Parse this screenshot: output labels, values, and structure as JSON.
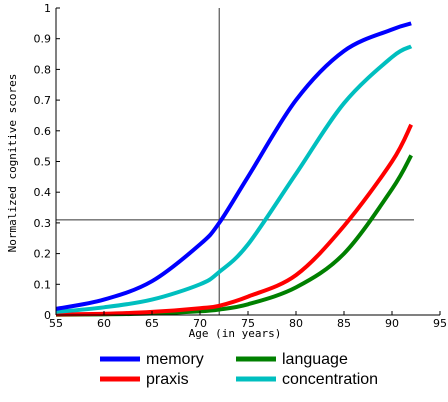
{
  "chart_data": {
    "type": "line",
    "title": "",
    "xlabel": "Age (in years)",
    "ylabel": "Normalized cognitive scores",
    "xlim": [
      55,
      95
    ],
    "ylim": [
      0,
      1
    ],
    "xticks": [
      55,
      60,
      65,
      70,
      75,
      80,
      85,
      90,
      95
    ],
    "yticks": [
      0,
      0.1,
      0.2,
      0.3,
      0.4,
      0.5,
      0.6,
      0.7,
      0.8,
      0.9,
      1
    ],
    "ytick_labels": [
      "0",
      "0.1",
      "0.2",
      "0.3",
      "0.4",
      "0.5",
      "0.6",
      "0.7",
      "0.8",
      "0.9",
      "1"
    ],
    "grid": false,
    "legend_position": "below",
    "reference_lines": {
      "vertical_x": 72,
      "horizontal_y": 0.31
    },
    "x": [
      55,
      60,
      65,
      70,
      72,
      75,
      80,
      85,
      90,
      92
    ],
    "series": [
      {
        "name": "memory",
        "color": "#0000ff",
        "values": [
          0.02,
          0.05,
          0.11,
          0.23,
          0.3,
          0.45,
          0.7,
          0.86,
          0.93,
          0.95
        ]
      },
      {
        "name": "praxis",
        "color": "#ff0000",
        "values": [
          0.002,
          0.004,
          0.01,
          0.022,
          0.03,
          0.06,
          0.13,
          0.29,
          0.5,
          0.62
        ]
      },
      {
        "name": "language",
        "color": "#008000",
        "values": [
          0.001,
          0.002,
          0.005,
          0.012,
          0.018,
          0.035,
          0.09,
          0.2,
          0.41,
          0.52
        ]
      },
      {
        "name": "concentration",
        "color": "#00bfbf",
        "values": [
          0.01,
          0.025,
          0.05,
          0.1,
          0.14,
          0.23,
          0.46,
          0.69,
          0.84,
          0.875
        ]
      }
    ],
    "legend_layout": [
      [
        "memory",
        "language"
      ],
      [
        "praxis",
        "concentration"
      ]
    ]
  }
}
